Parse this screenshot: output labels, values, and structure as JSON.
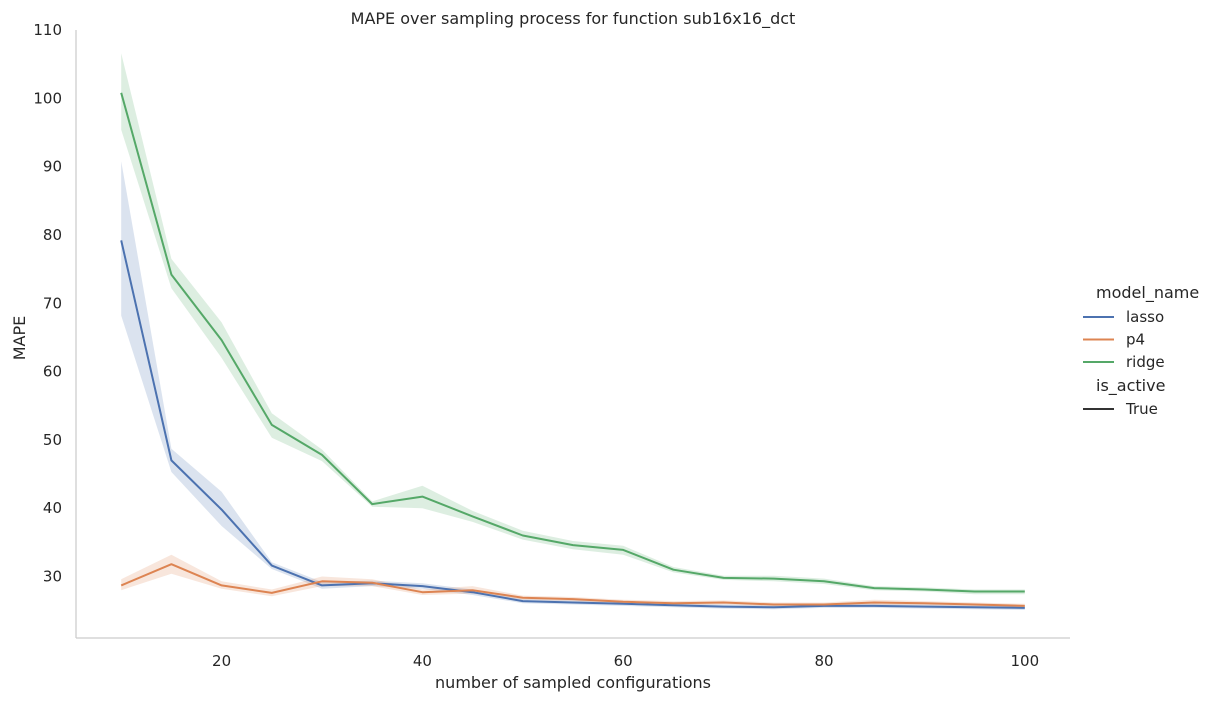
{
  "chart_data": {
    "type": "line",
    "title": "MAPE over sampling process for function sub16x16_dct",
    "xlabel": "number of sampled configurations",
    "ylabel": "MAPE",
    "xlim": [
      5.5,
      104.5
    ],
    "ylim": [
      21,
      110
    ],
    "xticks": [
      20,
      40,
      60,
      80,
      100
    ],
    "yticks": [
      30,
      40,
      50,
      60,
      70,
      80,
      90,
      100,
      110
    ],
    "grid": false,
    "legend_position": "right",
    "legend": {
      "hue_title": "model_name",
      "style_title": "is_active",
      "style_entries": [
        {
          "label": "True",
          "color": "#333333"
        }
      ]
    },
    "x": [
      10,
      15,
      20,
      25,
      30,
      35,
      40,
      45,
      50,
      55,
      60,
      65,
      70,
      75,
      80,
      85,
      90,
      95,
      100
    ],
    "series": [
      {
        "name": "lasso",
        "color": "#4c72b0",
        "values": [
          79.2,
          47.0,
          39.8,
          31.6,
          28.7,
          29.0,
          28.6,
          27.7,
          26.4,
          26.2,
          26.0,
          25.8,
          25.6,
          25.5,
          25.7,
          25.7,
          25.6,
          25.5,
          25.4
        ],
        "lower": [
          68.2,
          45.3,
          37.4,
          31.1,
          28.2,
          28.6,
          28.2,
          27.3,
          26.1,
          25.9,
          25.7,
          25.5,
          25.3,
          25.2,
          25.4,
          25.4,
          25.3,
          25.2,
          25.1
        ],
        "upper": [
          90.8,
          48.7,
          42.4,
          32.1,
          29.2,
          29.4,
          29.0,
          28.1,
          26.7,
          26.5,
          26.3,
          26.1,
          25.9,
          25.8,
          26.0,
          26.0,
          25.9,
          25.8,
          25.7
        ]
      },
      {
        "name": "p4",
        "color": "#dd8452",
        "values": [
          28.7,
          31.8,
          28.7,
          27.6,
          29.3,
          29.1,
          27.7,
          28.0,
          26.9,
          26.7,
          26.3,
          26.1,
          26.2,
          25.9,
          25.9,
          26.2,
          26.1,
          25.9,
          25.7
        ],
        "lower": [
          28.0,
          30.4,
          28.2,
          27.1,
          28.6,
          28.6,
          27.3,
          27.5,
          26.6,
          26.4,
          26.0,
          25.8,
          25.9,
          25.6,
          25.6,
          25.8,
          25.8,
          25.6,
          25.4
        ],
        "upper": [
          29.6,
          33.2,
          29.3,
          28.1,
          30.0,
          29.6,
          28.1,
          28.6,
          27.2,
          27.0,
          26.6,
          26.4,
          26.5,
          26.2,
          26.2,
          26.6,
          26.4,
          26.2,
          26.0
        ]
      },
      {
        "name": "ridge",
        "color": "#55a868",
        "values": [
          100.8,
          74.2,
          64.6,
          52.2,
          47.8,
          40.6,
          41.7,
          38.8,
          36.0,
          34.6,
          33.9,
          31.0,
          29.8,
          29.7,
          29.3,
          28.3,
          28.1,
          27.8,
          27.8
        ],
        "lower": [
          95.4,
          72.2,
          62.0,
          50.3,
          46.9,
          40.2,
          40.0,
          38.0,
          35.4,
          34.0,
          33.2,
          30.6,
          29.5,
          29.3,
          28.9,
          28.0,
          27.8,
          27.4,
          27.4
        ],
        "upper": [
          106.6,
          76.5,
          67.2,
          53.9,
          48.6,
          41.0,
          43.3,
          39.6,
          36.7,
          35.2,
          34.5,
          31.4,
          30.1,
          30.1,
          29.7,
          28.6,
          28.4,
          28.1,
          28.1
        ]
      }
    ]
  }
}
